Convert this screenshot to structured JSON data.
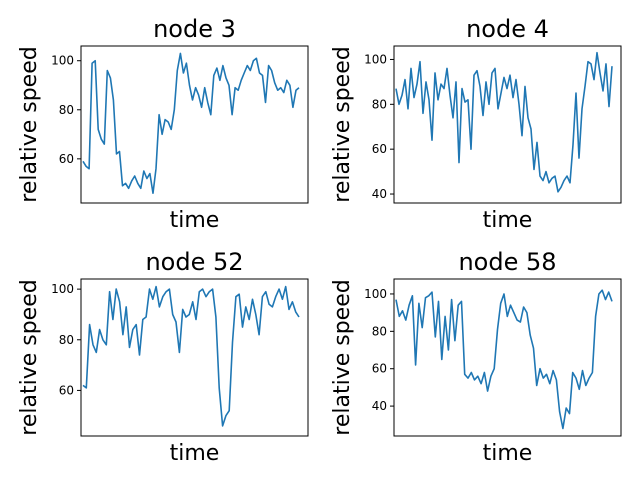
{
  "chart_data": [
    {
      "type": "line",
      "title": "node 3",
      "xlabel": "time",
      "ylabel": "relative speed",
      "ylim": [
        42,
        106
      ],
      "yticks": [
        60,
        80,
        100
      ],
      "xticks": [],
      "grid": false,
      "color": "#1f77b4",
      "series": [
        {
          "values": [
            59,
            57,
            56,
            99,
            100,
            72,
            68,
            66,
            96,
            93,
            84,
            62,
            63,
            49,
            50,
            48,
            51,
            53,
            50,
            48,
            55,
            52,
            54,
            46,
            56,
            78,
            70,
            76,
            75,
            72,
            80,
            96,
            103,
            95,
            99,
            90,
            84,
            89,
            86,
            81,
            89,
            83,
            78,
            94,
            97,
            92,
            98,
            93,
            90,
            78,
            89,
            88,
            92,
            95,
            98,
            96,
            100,
            101,
            95,
            94,
            83,
            98,
            96,
            91,
            88,
            89,
            87,
            92,
            90,
            81,
            88,
            89
          ]
        }
      ]
    },
    {
      "type": "line",
      "title": "node 4",
      "xlabel": "time",
      "ylabel": "relative speed",
      "ylim": [
        36,
        106
      ],
      "yticks": [
        40,
        60,
        80,
        100
      ],
      "xticks": [],
      "grid": false,
      "color": "#1f77b4",
      "series": [
        {
          "values": [
            87,
            80,
            84,
            91,
            78,
            96,
            83,
            89,
            99,
            76,
            90,
            82,
            64,
            94,
            82,
            89,
            87,
            96,
            84,
            74,
            90,
            54,
            87,
            81,
            82,
            60,
            93,
            95,
            88,
            75,
            90,
            80,
            94,
            96,
            78,
            85,
            92,
            87,
            93,
            83,
            91,
            80,
            66,
            88,
            74,
            69,
            51,
            63,
            48,
            46,
            50,
            45,
            47,
            48,
            41,
            43,
            46,
            48,
            45,
            62,
            85,
            56,
            78,
            88,
            99,
            98,
            91,
            103,
            94,
            86,
            98,
            79,
            97
          ]
        }
      ]
    },
    {
      "type": "line",
      "title": "node 52",
      "xlabel": "time",
      "ylabel": "relative speed",
      "ylim": [
        42,
        104
      ],
      "yticks": [
        60,
        80,
        100
      ],
      "xticks": [],
      "grid": false,
      "color": "#1f77b4",
      "series": [
        {
          "values": [
            62,
            61,
            86,
            78,
            75,
            84,
            80,
            78,
            99,
            88,
            100,
            95,
            82,
            93,
            77,
            84,
            86,
            74,
            88,
            89,
            100,
            96,
            101,
            93,
            97,
            99,
            100,
            90,
            87,
            75,
            92,
            89,
            90,
            95,
            88,
            99,
            100,
            97,
            99,
            100,
            89,
            61,
            46,
            50,
            52,
            79,
            97,
            98,
            85,
            93,
            88,
            96,
            90,
            82,
            97,
            99,
            94,
            93,
            97,
            100,
            96,
            101,
            92,
            95,
            91,
            89
          ]
        }
      ]
    },
    {
      "type": "line",
      "title": "node 58",
      "xlabel": "time",
      "ylabel": "relative speed",
      "ylim": [
        24,
        108
      ],
      "yticks": [
        40,
        60,
        80,
        100
      ],
      "xticks": [],
      "grid": false,
      "color": "#1f77b4",
      "series": [
        {
          "values": [
            97,
            88,
            91,
            86,
            94,
            99,
            62,
            95,
            82,
            98,
            99,
            101,
            77,
            96,
            65,
            88,
            70,
            97,
            75,
            94,
            96,
            57,
            55,
            58,
            54,
            56,
            52,
            58,
            48,
            56,
            60,
            81,
            95,
            100,
            88,
            94,
            90,
            86,
            85,
            93,
            90,
            78,
            71,
            51,
            60,
            55,
            57,
            52,
            59,
            54,
            37,
            28,
            39,
            36,
            58,
            55,
            49,
            59,
            51,
            55,
            58,
            88,
            100,
            102,
            97,
            101,
            96
          ]
        }
      ]
    }
  ]
}
